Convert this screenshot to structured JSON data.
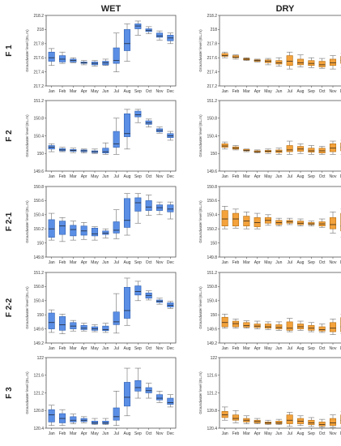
{
  "column_titles": [
    "WET",
    "DRY"
  ],
  "colors": {
    "wet_fill": "#5b8fe6",
    "wet_stroke": "#2f5fb0",
    "dry_fill": "#f3a23c",
    "dry_stroke": "#b56d10",
    "whisker": "#707070",
    "axis": "#555555"
  },
  "chart_data": [
    {
      "type": "box",
      "row_label": "F 1",
      "ylabel": "Groundwater level (EL.m)",
      "yticks": [
        217.2,
        217.4,
        217.6,
        217.8,
        218,
        218.2
      ],
      "ylim": [
        217.2,
        218.2
      ],
      "categories": [
        "Jan",
        "Feb",
        "Mar",
        "Apr",
        "May",
        "Jun",
        "Jul",
        "Aug",
        "Sep",
        "Oct",
        "Nov",
        "Dec"
      ],
      "wet": [
        [
          217.49,
          217.55,
          217.6,
          217.68,
          217.73
        ],
        [
          217.52,
          217.54,
          217.58,
          217.63,
          217.68
        ],
        [
          217.53,
          217.54,
          217.56,
          217.58,
          217.6
        ],
        [
          217.5,
          217.52,
          217.53,
          217.54,
          217.56
        ],
        [
          217.48,
          217.5,
          217.52,
          217.54,
          217.56
        ],
        [
          217.49,
          217.5,
          217.53,
          217.55,
          217.58
        ],
        [
          217.4,
          217.52,
          217.56,
          217.74,
          217.95
        ],
        [
          217.55,
          217.7,
          217.8,
          218.0,
          218.08
        ],
        [
          217.92,
          218.01,
          218.05,
          218.08,
          218.12
        ],
        [
          217.94,
          217.97,
          217.99,
          218.01,
          218.04
        ],
        [
          217.85,
          217.89,
          217.91,
          217.95,
          217.98
        ],
        [
          217.8,
          217.84,
          217.88,
          217.92,
          217.95
        ]
      ],
      "dry": [
        [
          217.6,
          217.62,
          217.63,
          217.66,
          217.68
        ],
        [
          217.58,
          217.6,
          217.61,
          217.63,
          217.64
        ],
        [
          217.56,
          217.57,
          217.58,
          217.59,
          217.6
        ],
        [
          217.54,
          217.55,
          217.56,
          217.57,
          217.58
        ],
        [
          217.5,
          217.53,
          217.55,
          217.57,
          217.59
        ],
        [
          217.48,
          217.51,
          217.53,
          217.56,
          217.6
        ],
        [
          217.44,
          217.49,
          217.55,
          217.63,
          217.68
        ],
        [
          217.47,
          217.5,
          217.53,
          217.58,
          217.64
        ],
        [
          217.46,
          217.49,
          217.52,
          217.56,
          217.6
        ],
        [
          217.45,
          217.47,
          217.5,
          217.55,
          217.59
        ],
        [
          217.44,
          217.49,
          217.53,
          217.58,
          217.63
        ],
        [
          217.46,
          217.52,
          217.56,
          217.62,
          217.66
        ]
      ]
    },
    {
      "type": "box",
      "row_label": "F 2",
      "ylabel": "Groundwater level (EL.m)",
      "yticks": [
        149.6,
        150,
        150.4,
        150.8,
        151.2
      ],
      "ylim": [
        149.6,
        151.2
      ],
      "categories": [
        "Jan",
        "Feb",
        "Mar",
        "Apr",
        "May",
        "Jun",
        "Jul",
        "Aug",
        "Sep",
        "Oct",
        "Nov",
        "Dec"
      ],
      "wet": [
        [
          150.04,
          150.1,
          150.14,
          150.18,
          150.22
        ],
        [
          150.04,
          150.06,
          150.08,
          150.11,
          150.14
        ],
        [
          150.02,
          150.05,
          150.07,
          150.09,
          150.12
        ],
        [
          150.01,
          150.04,
          150.06,
          150.08,
          150.1
        ],
        [
          150.0,
          150.02,
          150.04,
          150.06,
          150.1
        ],
        [
          149.98,
          150.01,
          150.04,
          150.12,
          150.24
        ],
        [
          149.98,
          150.14,
          150.22,
          150.5,
          150.8
        ],
        [
          150.1,
          150.38,
          150.45,
          150.9,
          151.0
        ],
        [
          150.7,
          150.83,
          150.88,
          150.96,
          151.0
        ],
        [
          150.6,
          150.66,
          150.69,
          150.74,
          150.78
        ],
        [
          150.46,
          150.49,
          150.52,
          150.56,
          150.6
        ],
        [
          150.3,
          150.36,
          150.4,
          150.45,
          150.5
        ]
      ],
      "dry": [
        [
          150.1,
          150.14,
          150.17,
          150.22,
          150.26
        ],
        [
          150.08,
          150.1,
          150.12,
          150.15,
          150.18
        ],
        [
          150.04,
          150.06,
          150.07,
          150.09,
          150.1
        ],
        [
          150.01,
          150.03,
          150.04,
          150.06,
          150.08
        ],
        [
          150.0,
          150.03,
          150.05,
          150.07,
          150.1
        ],
        [
          149.98,
          150.02,
          150.05,
          150.08,
          150.12
        ],
        [
          149.98,
          150.04,
          150.08,
          150.18,
          150.28
        ],
        [
          150.0,
          150.05,
          150.1,
          150.16,
          150.22
        ],
        [
          149.98,
          150.03,
          150.06,
          150.12,
          150.18
        ],
        [
          149.98,
          150.01,
          150.06,
          150.12,
          150.16
        ],
        [
          149.98,
          150.04,
          150.12,
          150.22,
          150.28
        ],
        [
          149.98,
          150.06,
          150.14,
          150.24,
          150.3
        ]
      ]
    },
    {
      "type": "box",
      "row_label": "F 2-1",
      "ylabel": "Groundwater level (EL.m)",
      "yticks": [
        149.8,
        150,
        150.2,
        150.4,
        150.6,
        150.8
      ],
      "ylim": [
        149.8,
        150.8
      ],
      "categories": [
        "Jan",
        "Feb",
        "Mar",
        "Apr",
        "May",
        "Jun",
        "Jul",
        "Aug",
        "Sep",
        "Oct",
        "Nov",
        "Dec"
      ],
      "wet": [
        [
          150.04,
          150.08,
          150.2,
          150.33,
          150.42
        ],
        [
          150.02,
          150.12,
          150.24,
          150.31,
          150.36
        ],
        [
          150.04,
          150.1,
          150.19,
          150.25,
          150.31
        ],
        [
          150.05,
          150.11,
          150.17,
          150.24,
          150.29
        ],
        [
          150.04,
          150.1,
          150.13,
          150.21,
          150.23
        ],
        [
          150.07,
          150.12,
          150.14,
          150.17,
          150.2
        ],
        [
          150.06,
          150.14,
          150.18,
          150.3,
          150.47
        ],
        [
          150.11,
          150.22,
          150.32,
          150.63,
          150.7
        ],
        [
          150.28,
          150.45,
          150.57,
          150.64,
          150.7
        ],
        [
          150.39,
          150.46,
          150.51,
          150.6,
          150.68
        ],
        [
          150.4,
          150.46,
          150.5,
          150.54,
          150.58
        ],
        [
          150.34,
          150.44,
          150.48,
          150.54,
          150.58
        ]
      ],
      "dry": [
        [
          150.2,
          150.24,
          150.34,
          150.46,
          150.52
        ],
        [
          150.21,
          150.24,
          150.34,
          150.42,
          150.48
        ],
        [
          150.2,
          150.24,
          150.31,
          150.38,
          150.44
        ],
        [
          150.2,
          150.23,
          150.29,
          150.36,
          150.42
        ],
        [
          150.25,
          150.28,
          150.32,
          150.36,
          150.4
        ],
        [
          150.24,
          150.26,
          150.29,
          150.32,
          150.35
        ],
        [
          150.26,
          150.28,
          150.3,
          150.32,
          150.35
        ],
        [
          150.24,
          150.26,
          150.28,
          150.31,
          150.34
        ],
        [
          150.24,
          150.26,
          150.27,
          150.29,
          150.31
        ],
        [
          150.22,
          150.24,
          150.27,
          150.3,
          150.34
        ],
        [
          150.14,
          150.2,
          150.26,
          150.36,
          150.44
        ],
        [
          150.08,
          150.17,
          150.24,
          150.42,
          150.48
        ]
      ]
    },
    {
      "type": "box",
      "row_label": "F 2-2",
      "ylabel": "Groundwater level (EL.m)",
      "yticks": [
        149.2,
        149.6,
        150,
        150.4,
        150.8,
        151.2
      ],
      "ylim": [
        149.2,
        151.2
      ],
      "categories": [
        "Jan",
        "Feb",
        "Mar",
        "Apr",
        "May",
        "Jun",
        "Jul",
        "Aug",
        "Sep",
        "Oct",
        "Nov",
        "Dec"
      ],
      "wet": [
        [
          149.5,
          149.6,
          149.78,
          150.05,
          150.14
        ],
        [
          149.46,
          149.56,
          149.72,
          149.95,
          150.02
        ],
        [
          149.54,
          149.6,
          149.68,
          149.78,
          149.84
        ],
        [
          149.54,
          149.58,
          149.62,
          149.7,
          149.76
        ],
        [
          149.52,
          149.56,
          149.6,
          149.66,
          149.72
        ],
        [
          149.5,
          149.55,
          149.58,
          149.68,
          149.76
        ],
        [
          149.48,
          149.72,
          149.8,
          150.08,
          150.6
        ],
        [
          149.7,
          149.9,
          150.12,
          150.78,
          151.04
        ],
        [
          150.4,
          150.56,
          150.66,
          150.82,
          150.95
        ],
        [
          150.42,
          150.47,
          150.55,
          150.62,
          150.68
        ],
        [
          150.3,
          150.35,
          150.38,
          150.42,
          150.47
        ],
        [
          150.18,
          150.22,
          150.27,
          150.34,
          150.38
        ]
      ],
      "dry": [
        [
          149.62,
          149.66,
          149.78,
          149.93,
          150.02
        ],
        [
          149.62,
          149.66,
          149.75,
          149.82,
          149.88
        ],
        [
          149.62,
          149.65,
          149.69,
          149.78,
          149.83
        ],
        [
          149.6,
          149.64,
          149.68,
          149.74,
          149.82
        ],
        [
          149.58,
          149.62,
          149.66,
          149.74,
          149.8
        ],
        [
          149.56,
          149.6,
          149.64,
          149.72,
          149.8
        ],
        [
          149.52,
          149.56,
          149.62,
          149.8,
          149.9
        ],
        [
          149.56,
          149.6,
          149.66,
          149.74,
          149.82
        ],
        [
          149.52,
          149.56,
          149.62,
          149.7,
          149.78
        ],
        [
          149.5,
          149.54,
          149.58,
          149.66,
          149.74
        ],
        [
          149.44,
          149.52,
          149.62,
          149.78,
          149.88
        ],
        [
          149.46,
          149.52,
          149.66,
          149.92,
          150.02
        ]
      ]
    },
    {
      "type": "box",
      "row_label": "F 3",
      "ylabel": "Groundwater level (EL.m)",
      "yticks": [
        120.4,
        120.8,
        121.2,
        121.6,
        122
      ],
      "ylim": [
        120.4,
        122
      ],
      "categories": [
        "Jan",
        "Feb",
        "Mar",
        "Apr",
        "May",
        "Jun",
        "Jul",
        "Aug",
        "Sep",
        "Oct",
        "Nov",
        "Dec"
      ],
      "wet": [
        [
          120.46,
          120.54,
          120.7,
          120.82,
          120.92
        ],
        [
          120.46,
          120.52,
          120.62,
          120.73,
          120.82
        ],
        [
          120.5,
          120.54,
          120.58,
          120.66,
          120.72
        ],
        [
          120.52,
          120.55,
          120.58,
          120.62,
          120.66
        ],
        [
          120.48,
          120.5,
          120.52,
          120.56,
          120.62
        ],
        [
          120.48,
          120.5,
          120.52,
          120.56,
          120.62
        ],
        [
          120.46,
          120.58,
          120.66,
          120.86,
          121.24
        ],
        [
          120.68,
          120.9,
          121.1,
          121.44,
          121.76
        ],
        [
          121.08,
          121.24,
          121.32,
          121.48,
          121.76
        ],
        [
          121.08,
          121.2,
          121.25,
          121.32,
          121.42
        ],
        [
          120.98,
          121.04,
          121.08,
          121.16,
          121.24
        ],
        [
          120.88,
          120.94,
          120.98,
          121.08,
          121.16
        ]
      ],
      "dry": [
        [
          120.58,
          120.64,
          120.7,
          120.78,
          120.88
        ],
        [
          120.52,
          120.58,
          120.62,
          120.7,
          120.8
        ],
        [
          120.5,
          120.54,
          120.58,
          120.62,
          120.68
        ],
        [
          120.5,
          120.52,
          120.55,
          120.58,
          120.62
        ],
        [
          120.48,
          120.5,
          120.52,
          120.54,
          120.58
        ],
        [
          120.48,
          120.5,
          120.52,
          120.56,
          120.6
        ],
        [
          120.44,
          120.5,
          120.58,
          120.7,
          120.76
        ],
        [
          120.46,
          120.5,
          120.56,
          120.62,
          120.68
        ],
        [
          120.44,
          120.48,
          120.52,
          120.58,
          120.64
        ],
        [
          120.42,
          120.45,
          120.48,
          120.54,
          120.6
        ],
        [
          120.42,
          120.46,
          120.52,
          120.62,
          120.7
        ],
        [
          120.44,
          120.5,
          120.58,
          120.7,
          120.78
        ]
      ]
    }
  ]
}
